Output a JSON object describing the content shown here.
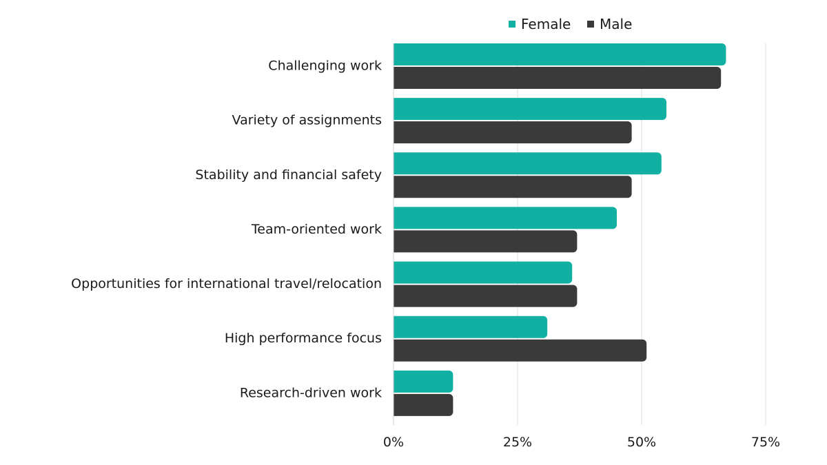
{
  "chart_data": {
    "type": "bar",
    "orientation": "horizontal",
    "categories": [
      "Challenging work",
      "Variety of assignments",
      "Stability and financial safety",
      "Team-oriented work",
      "Opportunities for international travel/relocation",
      "High performance focus",
      "Research-driven work"
    ],
    "series": [
      {
        "name": "Female",
        "color": "#12b0a3",
        "values": [
          67,
          55,
          54,
          45,
          36,
          31,
          12
        ]
      },
      {
        "name": "Male",
        "color": "#3a3a3a",
        "values": [
          66,
          48,
          48,
          37,
          37,
          51,
          12
        ]
      }
    ],
    "xlim": [
      0,
      75
    ],
    "xticks": [
      "0%",
      "25%",
      "50%",
      "75%"
    ],
    "xtick_values": [
      0,
      25,
      50,
      75
    ],
    "grid": true,
    "legend_position": "top-center",
    "title": "",
    "xlabel": "",
    "ylabel": ""
  }
}
